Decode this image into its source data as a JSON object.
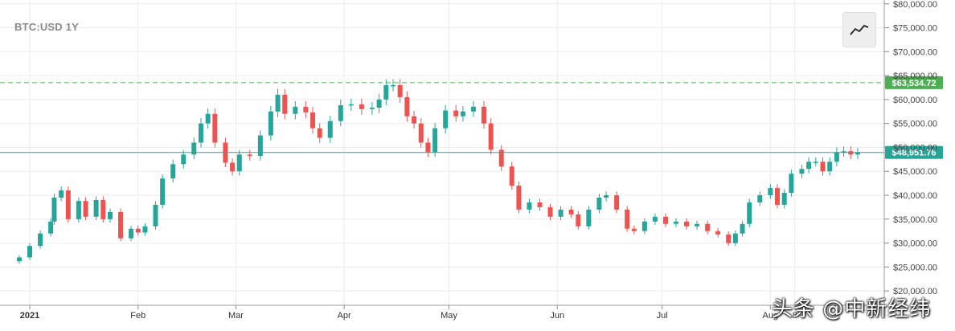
{
  "chart_data": {
    "type": "candlestick",
    "title": "BTC:USD 1Y",
    "y_tick_labels": [
      "$20,000.00",
      "$25,000.00",
      "$30,000.00",
      "$35,000.00",
      "$40,000.00",
      "$45,000.00",
      "$50,000.00",
      "$55,000.00",
      "$60,000.00",
      "$65,000.00",
      "$70,000.00",
      "$75,000.00",
      "$80,000.00"
    ],
    "y_ticks": [
      20000,
      25000,
      30000,
      35000,
      40000,
      45000,
      50000,
      55000,
      60000,
      65000,
      70000,
      75000,
      80000
    ],
    "ylim": [
      17000,
      80800
    ],
    "x_tick_labels": [
      "2021",
      "Feb",
      "Mar",
      "Apr",
      "May",
      "Jun",
      "Jul",
      "Aug",
      "8"
    ],
    "x_ticks": [
      "2021-01-01",
      "2021-02-01",
      "2021-03-01",
      "2021-04-01",
      "2021-05-01",
      "2021-06-01",
      "2021-07-01",
      "2021-08-01",
      "2021-08-08"
    ],
    "xlim": [
      "2020-12-29",
      "2021-08-29"
    ],
    "grid": true,
    "reference_lines": [
      {
        "label": "$63,534.72",
        "value": 63534.72,
        "style": "dashed",
        "color": "#4caf50"
      },
      {
        "label": "$48,951.76",
        "value": 48951.76,
        "style": "solid",
        "color": "#26a69a"
      }
    ],
    "colors": {
      "up": "#26a69a",
      "down": "#ef5350",
      "grid": "#ebebeb"
    },
    "watermark": "头条 @中新经纬",
    "candles": [
      {
        "x": "2020-12-29",
        "v": 27000
      },
      {
        "x": "2021-01-01",
        "v": 29400
      },
      {
        "x": "2021-01-04",
        "v": 32000
      },
      {
        "x": "2021-01-07",
        "v": 34500
      },
      {
        "x": "2021-01-08",
        "v": 39500
      },
      {
        "x": "2021-01-10",
        "v": 41000
      },
      {
        "x": "2021-01-12",
        "v": 35000
      },
      {
        "x": "2021-01-15",
        "v": 38800
      },
      {
        "x": "2021-01-17",
        "v": 35500
      },
      {
        "x": "2021-01-20",
        "v": 39000
      },
      {
        "x": "2021-01-22",
        "v": 35000
      },
      {
        "x": "2021-01-24",
        "v": 36500
      },
      {
        "x": "2021-01-27",
        "v": 31000
      },
      {
        "x": "2021-01-30",
        "v": 33000
      },
      {
        "x": "2021-02-01",
        "v": 32200
      },
      {
        "x": "2021-02-03",
        "v": 33500
      },
      {
        "x": "2021-02-06",
        "v": 38000
      },
      {
        "x": "2021-02-08",
        "v": 43500
      },
      {
        "x": "2021-02-11",
        "v": 46500
      },
      {
        "x": "2021-02-14",
        "v": 48500
      },
      {
        "x": "2021-02-17",
        "v": 51000
      },
      {
        "x": "2021-02-19",
        "v": 55000
      },
      {
        "x": "2021-02-21",
        "v": 57000
      },
      {
        "x": "2021-02-23",
        "v": 51000
      },
      {
        "x": "2021-02-26",
        "v": 46800
      },
      {
        "x": "2021-02-28",
        "v": 45000
      },
      {
        "x": "2021-03-02",
        "v": 48500
      },
      {
        "x": "2021-03-05",
        "v": 48200
      },
      {
        "x": "2021-03-08",
        "v": 52500
      },
      {
        "x": "2021-03-11",
        "v": 57500
      },
      {
        "x": "2021-03-13",
        "v": 61000
      },
      {
        "x": "2021-03-15",
        "v": 57000
      },
      {
        "x": "2021-03-18",
        "v": 58500
      },
      {
        "x": "2021-03-21",
        "v": 57300
      },
      {
        "x": "2021-03-23",
        "v": 54000
      },
      {
        "x": "2021-03-25",
        "v": 52000
      },
      {
        "x": "2021-03-28",
        "v": 55500
      },
      {
        "x": "2021-03-31",
        "v": 58800
      },
      {
        "x": "2021-04-03",
        "v": 59000
      },
      {
        "x": "2021-04-06",
        "v": 58000
      },
      {
        "x": "2021-04-09",
        "v": 58300
      },
      {
        "x": "2021-04-11",
        "v": 60000
      },
      {
        "x": "2021-04-13",
        "v": 63000
      },
      {
        "x": "2021-04-15",
        "v": 63000
      },
      {
        "x": "2021-04-17",
        "v": 60500
      },
      {
        "x": "2021-04-19",
        "v": 56500
      },
      {
        "x": "2021-04-21",
        "v": 55000
      },
      {
        "x": "2021-04-23",
        "v": 51000
      },
      {
        "x": "2021-04-25",
        "v": 49000
      },
      {
        "x": "2021-04-27",
        "v": 54000
      },
      {
        "x": "2021-04-30",
        "v": 57700
      },
      {
        "x": "2021-05-03",
        "v": 56500
      },
      {
        "x": "2021-05-05",
        "v": 57500
      },
      {
        "x": "2021-05-08",
        "v": 58500
      },
      {
        "x": "2021-05-11",
        "v": 55000
      },
      {
        "x": "2021-05-13",
        "v": 49500
      },
      {
        "x": "2021-05-16",
        "v": 46000
      },
      {
        "x": "2021-05-19",
        "v": 42000
      },
      {
        "x": "2021-05-21",
        "v": 37000
      },
      {
        "x": "2021-05-24",
        "v": 38500
      },
      {
        "x": "2021-05-27",
        "v": 37500
      },
      {
        "x": "2021-05-30",
        "v": 35500
      },
      {
        "x": "2021-06-02",
        "v": 37000
      },
      {
        "x": "2021-06-05",
        "v": 36000
      },
      {
        "x": "2021-06-07",
        "v": 33500
      },
      {
        "x": "2021-06-10",
        "v": 37000
      },
      {
        "x": "2021-06-13",
        "v": 39500
      },
      {
        "x": "2021-06-15",
        "v": 40000
      },
      {
        "x": "2021-06-18",
        "v": 37000
      },
      {
        "x": "2021-06-21",
        "v": 33000
      },
      {
        "x": "2021-06-23",
        "v": 32500
      },
      {
        "x": "2021-06-26",
        "v": 34500
      },
      {
        "x": "2021-06-29",
        "v": 35500
      },
      {
        "x": "2021-07-02",
        "v": 34000
      },
      {
        "x": "2021-07-05",
        "v": 34500
      },
      {
        "x": "2021-07-08",
        "v": 33500
      },
      {
        "x": "2021-07-11",
        "v": 34000
      },
      {
        "x": "2021-07-14",
        "v": 32500
      },
      {
        "x": "2021-07-17",
        "v": 31800
      },
      {
        "x": "2021-07-20",
        "v": 30000
      },
      {
        "x": "2021-07-22",
        "v": 32000
      },
      {
        "x": "2021-07-24",
        "v": 34000
      },
      {
        "x": "2021-07-26",
        "v": 38500
      },
      {
        "x": "2021-07-29",
        "v": 40000
      },
      {
        "x": "2021-08-01",
        "v": 41500
      },
      {
        "x": "2021-08-03",
        "v": 38000
      },
      {
        "x": "2021-08-05",
        "v": 40500
      },
      {
        "x": "2021-08-07",
        "v": 44500
      },
      {
        "x": "2021-08-10",
        "v": 45500
      },
      {
        "x": "2021-08-12",
        "v": 47000
      },
      {
        "x": "2021-08-14",
        "v": 47000
      },
      {
        "x": "2021-08-16",
        "v": 45000
      },
      {
        "x": "2021-08-18",
        "v": 47000
      },
      {
        "x": "2021-08-20",
        "v": 49000
      },
      {
        "x": "2021-08-22",
        "v": 49200
      },
      {
        "x": "2021-08-24",
        "v": 48500
      },
      {
        "x": "2021-08-26",
        "v": 48900
      }
    ]
  }
}
